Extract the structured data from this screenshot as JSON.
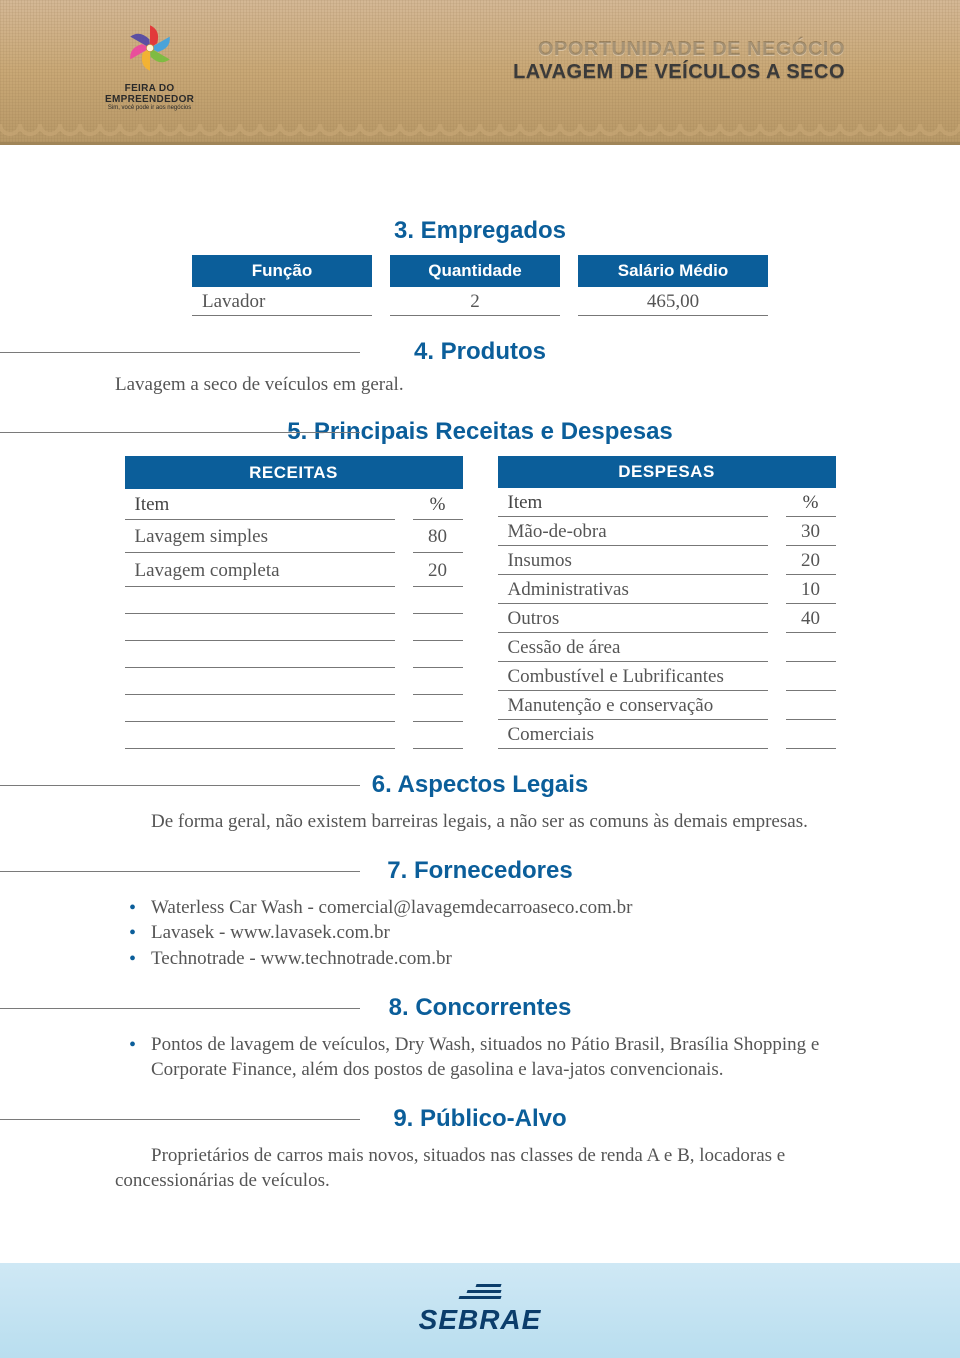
{
  "header": {
    "overline": "OPORTUNIDADE DE NEGÓCIO",
    "title": "LAVAGEM DE VEÍCULOS A SECO",
    "logo_line1": "FEIRA DO",
    "logo_line2": "EMPREENDEDOR",
    "logo_sub": "Sim, você pode ir aos negócios"
  },
  "colors": {
    "brand_blue": "#0b5e9a",
    "text_body": "#555555",
    "rule": "#777777",
    "burlap1": "#d4b896",
    "burlap2": "#c9a876",
    "footer_sky": "#cfe8f5"
  },
  "sections": {
    "s3": {
      "title": "3. Empregados"
    },
    "s4": {
      "title": "4. Produtos",
      "text": "Lavagem a seco de veículos em geral."
    },
    "s5": {
      "title": "5. Principais Receitas e Despesas"
    },
    "s6": {
      "title": "6. Aspectos Legais",
      "text": "De forma geral, não existem barreiras legais, a não ser as comuns às demais empresas."
    },
    "s7": {
      "title": "7. Fornecedores"
    },
    "s8": {
      "title": "8. Concorrentes"
    },
    "s9": {
      "title": "9. Público-Alvo",
      "text": "Proprietários de carros mais novos, situados nas classes de renda A e B, locadoras e concessionárias de veículos."
    }
  },
  "empregados": {
    "headers": [
      "Função",
      "Quantidade",
      "Salário Médio"
    ],
    "rows": [
      {
        "funcao": "Lavador",
        "qtd": "2",
        "salario": "465,00"
      }
    ]
  },
  "receitas": {
    "title": "RECEITAS",
    "col_item": "Item",
    "col_pct": "%",
    "rows": [
      {
        "item": "Lavagem simples",
        "pct": "80"
      },
      {
        "item": "Lavagem completa",
        "pct": "20"
      }
    ]
  },
  "despesas": {
    "title": "DESPESAS",
    "col_item": "Item",
    "col_pct": "%",
    "rows": [
      {
        "item": "Mão-de-obra",
        "pct": "30"
      },
      {
        "item": "Insumos",
        "pct": "20"
      },
      {
        "item": "Administrativas",
        "pct": "10"
      },
      {
        "item": "Outros",
        "pct": "40"
      },
      {
        "item": "Cessão de área",
        "pct": ""
      },
      {
        "item": "Combustível e Lubrificantes",
        "pct": ""
      },
      {
        "item": "Manutenção e conservação",
        "pct": ""
      },
      {
        "item": "Comerciais",
        "pct": ""
      }
    ]
  },
  "fornecedores": [
    "Waterless Car Wash - comercial@lavagemdecarroaseco.com.br",
    "Lavasek - www.lavasek.com.br",
    "Technotrade - www.technotrade.com.br"
  ],
  "concorrentes": [
    "Pontos de lavagem de veículos, Dry Wash, situados no Pátio Brasil, Brasília Shopping e Corporate Finance, além dos postos de gasolina e lava-jatos convencionais."
  ],
  "footer": {
    "brand": "SEBRAE"
  }
}
